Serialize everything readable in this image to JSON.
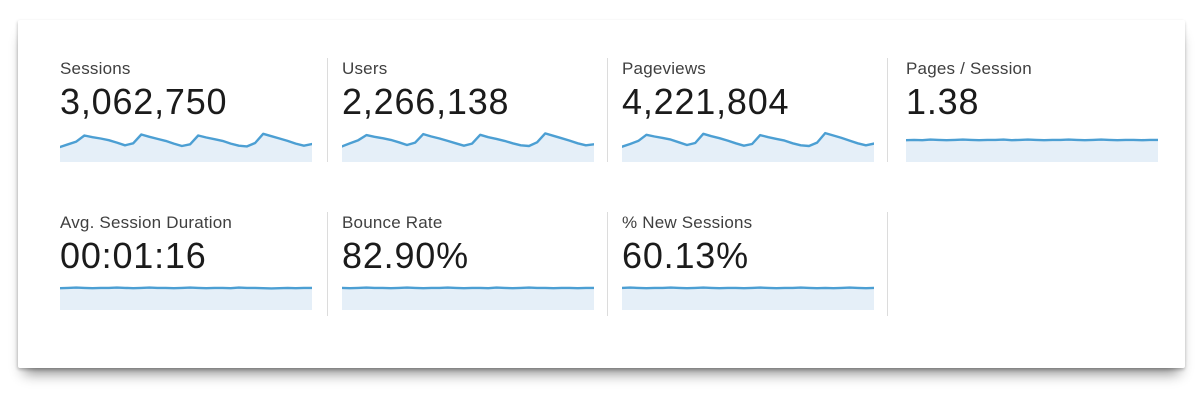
{
  "card": {
    "background": "#ffffff",
    "sparkline_line_color": "#4c9fd3",
    "sparkline_fill_color": "#e5eff8",
    "divider_color": "#dcdcdc"
  },
  "metrics": {
    "rows": [
      [
        {
          "label": "Sessions",
          "value": "3,062,750",
          "sparkline": {
            "type": "area",
            "values": [
              0.44,
              0.52,
              0.6,
              0.78,
              0.73,
              0.69,
              0.64,
              0.57,
              0.49,
              0.55,
              0.81,
              0.74,
              0.68,
              0.62,
              0.54,
              0.47,
              0.52,
              0.78,
              0.72,
              0.67,
              0.62,
              0.54,
              0.48,
              0.46,
              0.56,
              0.83,
              0.76,
              0.69,
              0.62,
              0.54,
              0.48,
              0.53
            ]
          }
        },
        {
          "label": "Users",
          "value": "2,266,138",
          "sparkline": {
            "type": "area",
            "values": [
              0.46,
              0.55,
              0.64,
              0.79,
              0.74,
              0.7,
              0.65,
              0.58,
              0.5,
              0.57,
              0.82,
              0.75,
              0.69,
              0.62,
              0.55,
              0.48,
              0.54,
              0.8,
              0.73,
              0.68,
              0.62,
              0.55,
              0.49,
              0.47,
              0.58,
              0.84,
              0.77,
              0.7,
              0.63,
              0.55,
              0.49,
              0.52
            ]
          }
        },
        {
          "label": "Pageviews",
          "value": "4,221,804",
          "sparkline": {
            "type": "area",
            "values": [
              0.45,
              0.53,
              0.62,
              0.8,
              0.75,
              0.71,
              0.66,
              0.58,
              0.5,
              0.56,
              0.83,
              0.76,
              0.7,
              0.63,
              0.55,
              0.48,
              0.53,
              0.79,
              0.73,
              0.68,
              0.63,
              0.55,
              0.49,
              0.47,
              0.57,
              0.85,
              0.78,
              0.71,
              0.63,
              0.55,
              0.49,
              0.54
            ]
          }
        },
        {
          "label": "Pages / Session",
          "value": "1.38",
          "sparkline": {
            "type": "area",
            "values": [
              0.64,
              0.65,
              0.64,
              0.66,
              0.65,
              0.64,
              0.65,
              0.66,
              0.65,
              0.64,
              0.65,
              0.65,
              0.66,
              0.64,
              0.65,
              0.66,
              0.65,
              0.64,
              0.65,
              0.65,
              0.66,
              0.65,
              0.64,
              0.65,
              0.66,
              0.65,
              0.64,
              0.65,
              0.65,
              0.64,
              0.65,
              0.65
            ]
          }
        }
      ],
      [
        {
          "label": "Avg. Session Duration",
          "value": "00:01:16",
          "sparkline": {
            "type": "area",
            "values": [
              0.84,
              0.85,
              0.86,
              0.85,
              0.84,
              0.85,
              0.85,
              0.86,
              0.85,
              0.84,
              0.85,
              0.86,
              0.85,
              0.85,
              0.84,
              0.85,
              0.86,
              0.85,
              0.84,
              0.85,
              0.85,
              0.84,
              0.86,
              0.85,
              0.85,
              0.84,
              0.83,
              0.84,
              0.85,
              0.84,
              0.85,
              0.85
            ]
          }
        },
        {
          "label": "Bounce Rate",
          "value": "82.90%",
          "sparkline": {
            "type": "area",
            "values": [
              0.85,
              0.84,
              0.85,
              0.86,
              0.85,
              0.85,
              0.84,
              0.85,
              0.86,
              0.85,
              0.84,
              0.85,
              0.85,
              0.86,
              0.85,
              0.84,
              0.85,
              0.85,
              0.84,
              0.86,
              0.85,
              0.84,
              0.85,
              0.86,
              0.85,
              0.85,
              0.84,
              0.85,
              0.85,
              0.84,
              0.85,
              0.85
            ]
          }
        },
        {
          "label": "% New Sessions",
          "value": "60.13%",
          "sparkline": {
            "type": "area",
            "values": [
              0.85,
              0.86,
              0.85,
              0.84,
              0.85,
              0.85,
              0.86,
              0.85,
              0.84,
              0.85,
              0.86,
              0.85,
              0.84,
              0.85,
              0.85,
              0.84,
              0.85,
              0.86,
              0.85,
              0.84,
              0.85,
              0.85,
              0.86,
              0.85,
              0.84,
              0.85,
              0.84,
              0.85,
              0.86,
              0.85,
              0.84,
              0.85
            ]
          }
        }
      ]
    ]
  }
}
